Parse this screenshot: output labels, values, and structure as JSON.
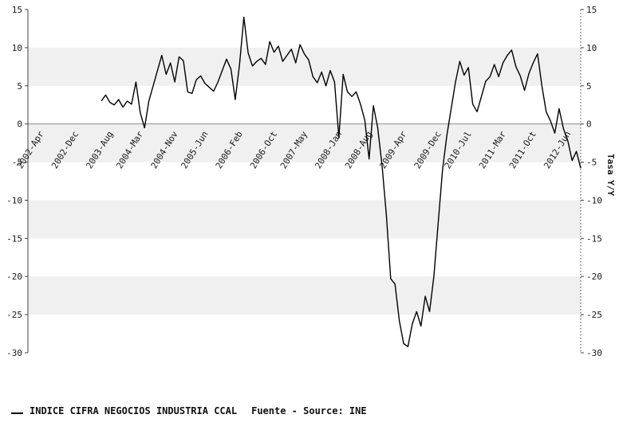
{
  "chart_data": {
    "type": "line",
    "title": "",
    "y2_label": "Tasa Y/Y",
    "ylim": [
      -30,
      15
    ],
    "y_ticks": [
      15,
      10,
      5,
      0,
      -5,
      -10,
      -15,
      -20,
      -25,
      -30
    ],
    "x_domain_months": [
      -3,
      125
    ],
    "x_ticks": [
      {
        "label": "2002-Apr",
        "m": 0
      },
      {
        "label": "2002-Dec",
        "m": 8
      },
      {
        "label": "2003-Aug",
        "m": 16
      },
      {
        "label": "2004-Mar",
        "m": 23
      },
      {
        "label": "2004-Nov",
        "m": 31
      },
      {
        "label": "2005-Jun",
        "m": 38
      },
      {
        "label": "2006-Feb",
        "m": 46
      },
      {
        "label": "2006-Oct",
        "m": 54
      },
      {
        "label": "2007-May",
        "m": 61
      },
      {
        "label": "2008-Jan",
        "m": 69
      },
      {
        "label": "2008-Aug",
        "m": 76
      },
      {
        "label": "2009-Apr",
        "m": 84
      },
      {
        "label": "2009-Dec",
        "m": 92
      },
      {
        "label": "2010-Jul",
        "m": 99
      },
      {
        "label": "2011-Mar",
        "m": 107
      },
      {
        "label": "2011-Oct",
        "m": 114
      },
      {
        "label": "2012-Jun",
        "m": 122
      }
    ],
    "series": [
      {
        "name": "INDICE CIFRA NEGOCIOS INDUSTRIA CCAL",
        "start_month": 14,
        "values": [
          3.0,
          3.8,
          2.8,
          2.5,
          3.2,
          2.2,
          3.0,
          2.6,
          5.5,
          1.5,
          -0.5,
          3.0,
          5.0,
          7.0,
          9.0,
          6.5,
          8.0,
          5.5,
          8.8,
          8.3,
          4.2,
          4.0,
          5.8,
          6.3,
          5.3,
          4.8,
          4.3,
          5.5,
          7.0,
          8.5,
          7.2,
          3.2,
          7.8,
          14.0,
          9.3,
          7.6,
          8.2,
          8.6,
          7.8,
          10.8,
          9.4,
          10.2,
          8.2,
          9.0,
          9.8,
          8.0,
          10.4,
          9.2,
          8.4,
          6.2,
          5.4,
          6.8,
          5.0,
          7.0,
          5.5,
          -1.8,
          6.5,
          4.2,
          3.6,
          4.2,
          2.6,
          0.5,
          -4.6,
          2.4,
          -0.5,
          -5.5,
          -12.0,
          -20.3,
          -21.0,
          -25.8,
          -28.8,
          -29.2,
          -26.2,
          -24.6,
          -26.5,
          -22.6,
          -24.6,
          -20.0,
          -13.0,
          -6.0,
          -1.5,
          2.0,
          5.5,
          8.2,
          6.4,
          7.4,
          2.6,
          1.6,
          3.6,
          5.6,
          6.2,
          7.8,
          6.2,
          8.0,
          9.0,
          9.7,
          7.5,
          6.3,
          4.4,
          6.6,
          8.0,
          9.2,
          5.0,
          1.6,
          0.4,
          -1.2,
          2.0,
          -0.6,
          -2.2,
          -4.8,
          -3.6,
          -5.8
        ]
      }
    ],
    "legend": {
      "label": "INDICE CIFRA NEGOCIOS INDUSTRIA CCAL",
      "source": "Fuente - Source: INE"
    },
    "colors": {
      "line": "#000000",
      "band": "#f0f0f0",
      "zero_line": "#8c8c8c",
      "axis": "#444444",
      "text": "#1a1a1a"
    },
    "grid": "banded",
    "legend_position": "bottom-left"
  }
}
